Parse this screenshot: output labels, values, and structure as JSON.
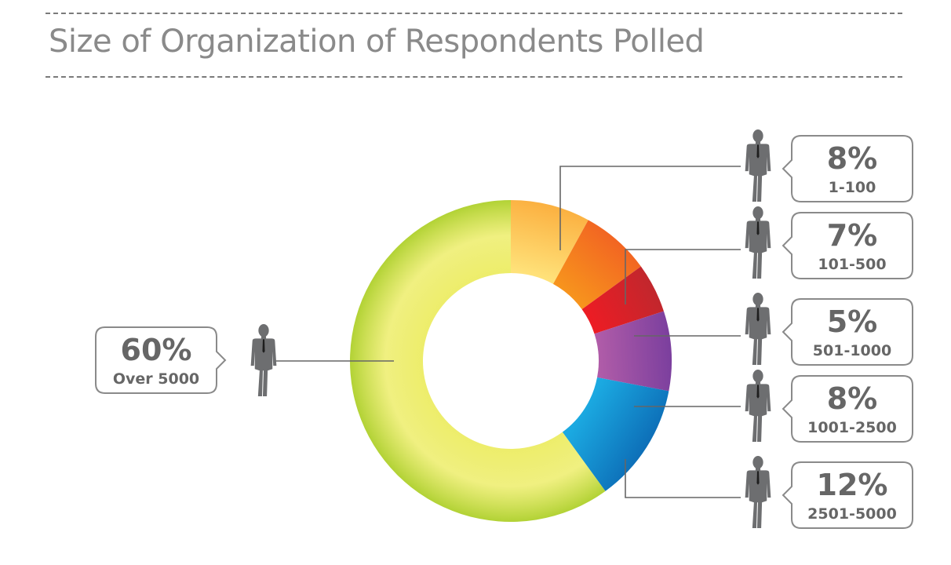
{
  "chart_data": {
    "type": "pie",
    "variant": "donut",
    "title": "Size of Organization of Respondents Polled",
    "slices": [
      {
        "label": "1-100",
        "value": 8,
        "display": "8%",
        "color": "#fbb040",
        "color_light": "#ffe27a"
      },
      {
        "label": "101-500",
        "value": 7,
        "display": "7%",
        "color": "#f26522",
        "color_light": "#f7941d"
      },
      {
        "label": "501-1000",
        "value": 5,
        "display": "5%",
        "color": "#c1272d",
        "color_light": "#ed1c24"
      },
      {
        "label": "1001-2500",
        "value": 8,
        "display": "8%",
        "color": "#7b3f9e",
        "color_light": "#b05ca8"
      },
      {
        "label": "2501-5000",
        "value": 12,
        "display": "12%",
        "color": "#0d6fb8",
        "color_light": "#1ba9e1"
      },
      {
        "label": "Over 5000",
        "value": 60,
        "display": "60%",
        "color": "#b2d235",
        "color_light": "#eded6a"
      }
    ]
  },
  "colors": {
    "text": "#666666",
    "title": "#8a8a8a",
    "person": "#6d6e70",
    "box_border": "#8a8a8a",
    "leader": "#666666"
  },
  "icons": {
    "person": "person-icon"
  }
}
